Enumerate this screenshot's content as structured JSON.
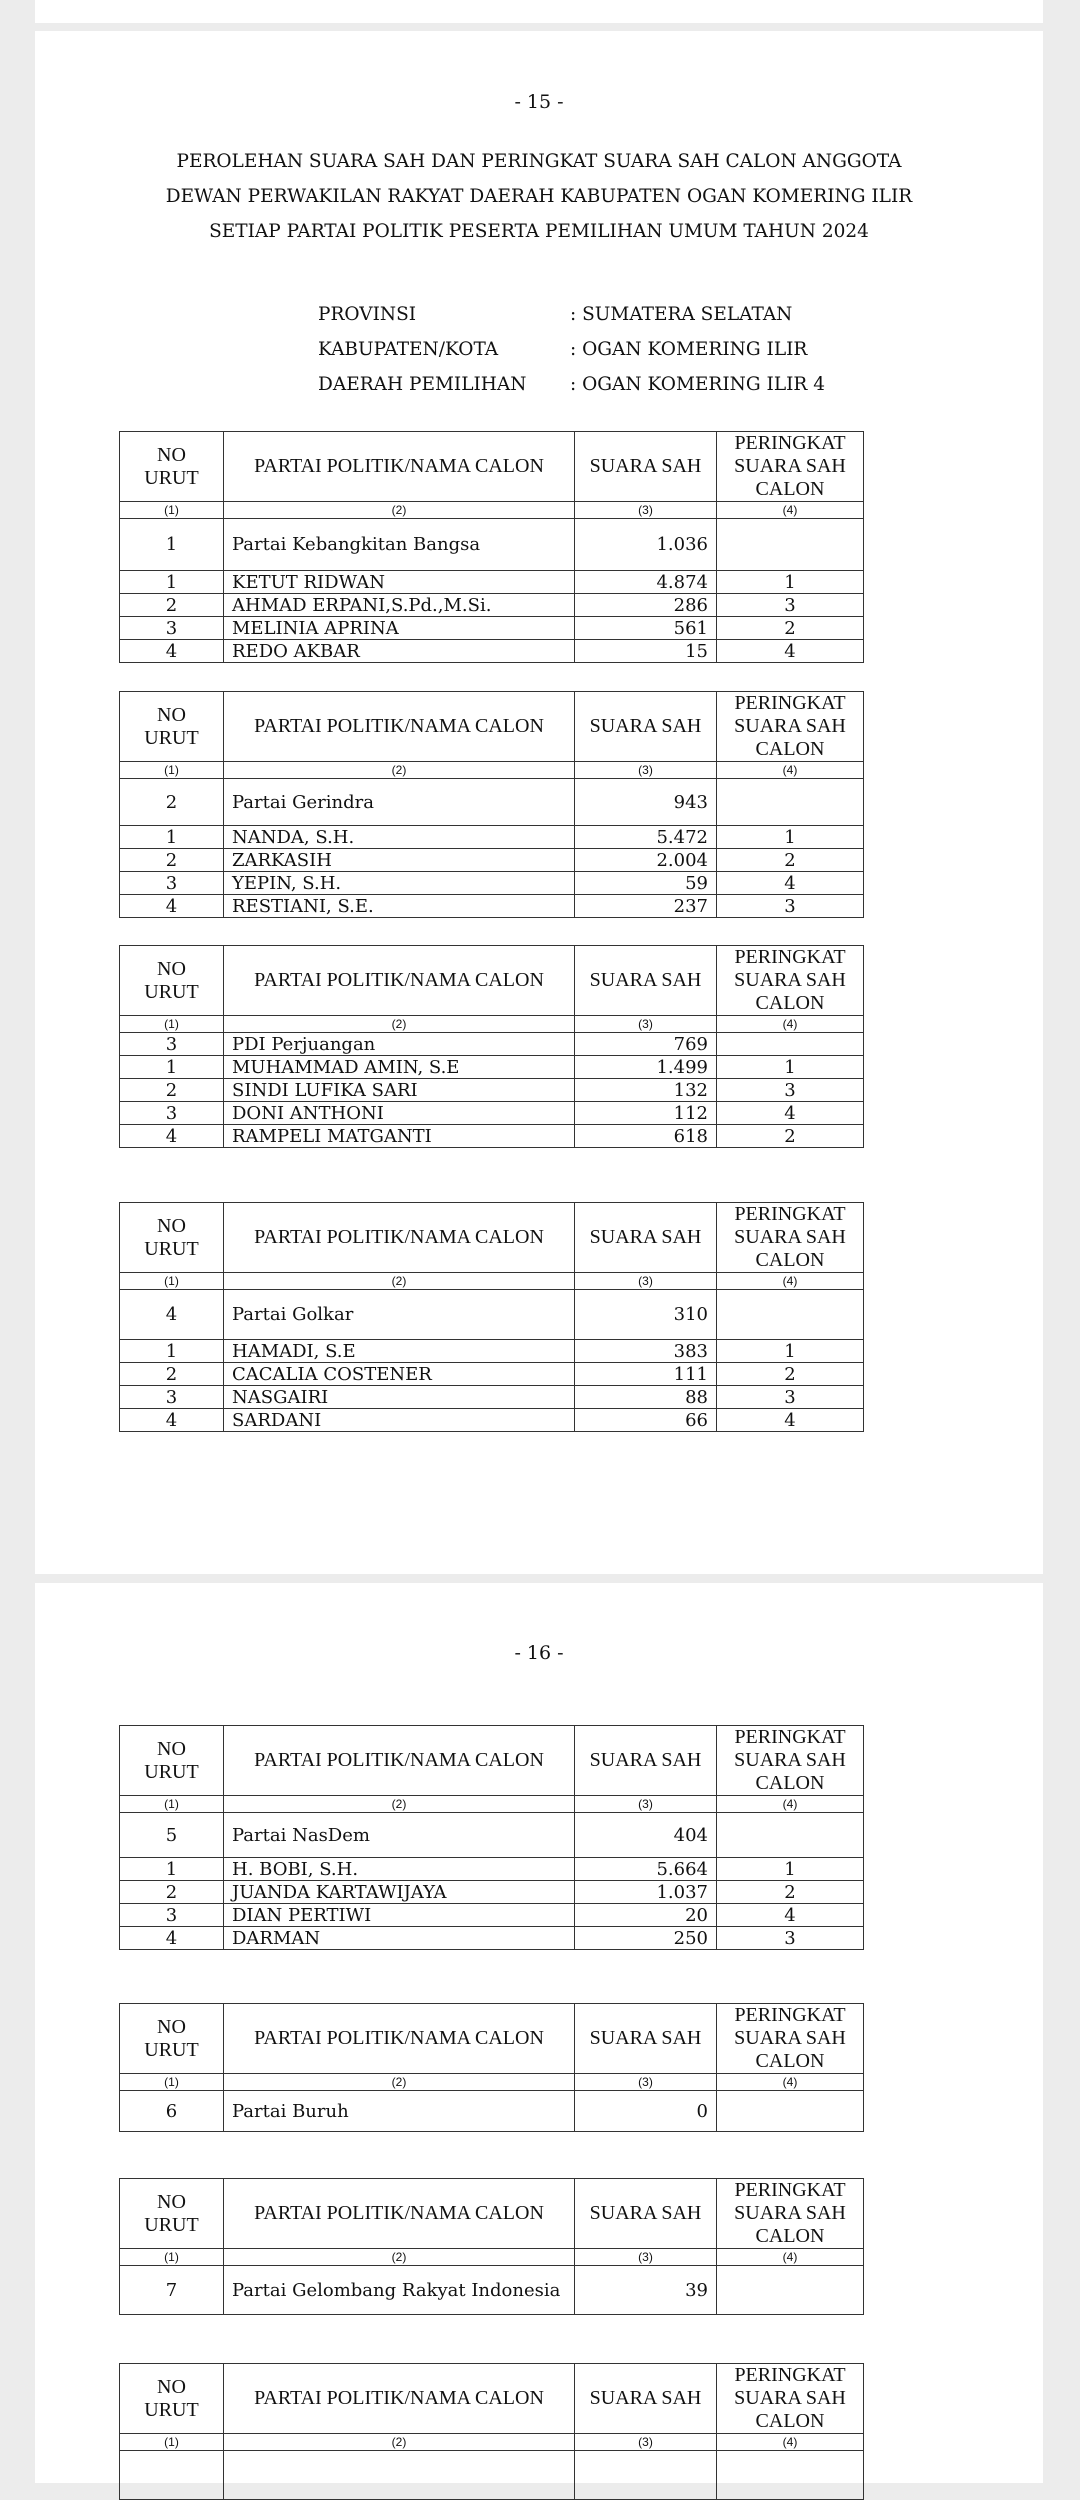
{
  "pages": [
    {
      "number": "- 15 -",
      "title_lines": [
        "PEROLEHAN SUARA SAH DAN PERINGKAT SUARA SAH CALON ANGGOTA",
        "DEWAN PERWAKILAN RAKYAT DAERAH KABUPATEN OGAN KOMERING ILIR",
        "SETIAP PARTAI POLITIK PESERTA PEMILIHAN UMUM TAHUN 2024"
      ],
      "info": [
        {
          "label": "PROVINSI",
          "value": ": SUMATERA SELATAN"
        },
        {
          "label": "KABUPATEN/KOTA",
          "value": ": OGAN KOMERING ILIR"
        },
        {
          "label": "DAERAH PEMILIHAN",
          "value": ": OGAN KOMERING ILIR 4"
        }
      ]
    },
    {
      "number": "- 16 -"
    }
  ],
  "table_header": {
    "no": "NO URUT",
    "name": "PARTAI POLITIK/NAMA CALON",
    "votes": "SUARA SAH",
    "rank": "PERINGKAT SUARA SAH CALON",
    "idx": [
      "(1)",
      "(2)",
      "(3)",
      "(4)"
    ]
  },
  "parties": [
    {
      "no": "1",
      "name": "Partai Kebangkitan Bangsa",
      "votes": "1.036",
      "candidates": [
        {
          "no": "1",
          "name": "KETUT RIDWAN",
          "votes": "4.874",
          "rank": "1"
        },
        {
          "no": "2",
          "name": "AHMAD ERPANI,S.Pd.,M.Si.",
          "votes": "286",
          "rank": "3"
        },
        {
          "no": "3",
          "name": "MELINIA APRINA",
          "votes": "561",
          "rank": "2"
        },
        {
          "no": "4",
          "name": "REDO AKBAR",
          "votes": "15",
          "rank": "4"
        }
      ]
    },
    {
      "no": "2",
      "name": "Partai Gerindra",
      "votes": "943",
      "candidates": [
        {
          "no": "1",
          "name": "NANDA, S.H.",
          "votes": "5.472",
          "rank": "1"
        },
        {
          "no": "2",
          "name": "ZARKASIH",
          "votes": "2.004",
          "rank": "2"
        },
        {
          "no": "3",
          "name": "YEPIN, S.H.",
          "votes": "59",
          "rank": "4"
        },
        {
          "no": "4",
          "name": "RESTIANI, S.E.",
          "votes": "237",
          "rank": "3"
        }
      ]
    },
    {
      "no": "3",
      "name": "PDI Perjuangan",
      "votes": "769",
      "candidates": [
        {
          "no": "1",
          "name": "MUHAMMAD AMIN, S.E",
          "votes": "1.499",
          "rank": "1"
        },
        {
          "no": "2",
          "name": "SINDI LUFIKA SARI",
          "votes": "132",
          "rank": "3"
        },
        {
          "no": "3",
          "name": "DONI ANTHONI",
          "votes": "112",
          "rank": "4"
        },
        {
          "no": "4",
          "name": "RAMPELI MATGANTI",
          "votes": "618",
          "rank": "2"
        }
      ]
    },
    {
      "no": "4",
      "name": "Partai Golkar",
      "votes": "310",
      "candidates": [
        {
          "no": "1",
          "name": "HAMADI, S.E",
          "votes": "383",
          "rank": "1"
        },
        {
          "no": "2",
          "name": "CACALIA COSTENER",
          "votes": "111",
          "rank": "2"
        },
        {
          "no": "3",
          "name": "NASGAIRI",
          "votes": "88",
          "rank": "3"
        },
        {
          "no": "4",
          "name": "SARDANI",
          "votes": "66",
          "rank": "4"
        }
      ]
    },
    {
      "no": "5",
      "name": "Partai NasDem",
      "votes": "404",
      "candidates": [
        {
          "no": "1",
          "name": "H. BOBI, S.H.",
          "votes": "5.664",
          "rank": "1"
        },
        {
          "no": "2",
          "name": "JUANDA KARTAWIJAYA",
          "votes": "1.037",
          "rank": "2"
        },
        {
          "no": "3",
          "name": "DIAN PERTIWI",
          "votes": "20",
          "rank": "4"
        },
        {
          "no": "4",
          "name": "DARMAN",
          "votes": "250",
          "rank": "3"
        }
      ]
    },
    {
      "no": "6",
      "name": "Partai Buruh",
      "votes": "0",
      "candidates": []
    },
    {
      "no": "7",
      "name": "Partai Gelombang Rakyat Indonesia",
      "votes": "39",
      "candidates": []
    },
    {
      "no": "",
      "name": "",
      "votes": "",
      "candidates": []
    }
  ]
}
